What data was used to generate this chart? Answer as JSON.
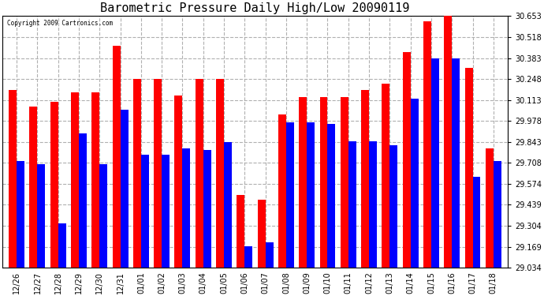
{
  "title": "Barometric Pressure Daily High/Low 20090119",
  "copyright": "Copyright 2009 Cartronics.com",
  "categories": [
    "12/26",
    "12/27",
    "12/28",
    "12/29",
    "12/30",
    "12/31",
    "01/01",
    "01/02",
    "01/03",
    "01/04",
    "01/05",
    "01/06",
    "01/07",
    "01/08",
    "01/09",
    "01/10",
    "01/11",
    "01/12",
    "01/13",
    "01/14",
    "01/15",
    "01/16",
    "01/17",
    "01/18"
  ],
  "highs": [
    30.18,
    30.07,
    30.1,
    30.16,
    30.16,
    30.46,
    30.25,
    30.25,
    30.14,
    30.25,
    30.25,
    29.5,
    29.47,
    30.02,
    30.13,
    30.13,
    30.13,
    30.18,
    30.22,
    30.42,
    30.62,
    30.68,
    30.32,
    29.8
  ],
  "lows": [
    29.72,
    29.7,
    29.32,
    29.9,
    29.7,
    30.05,
    29.76,
    29.76,
    29.8,
    29.79,
    29.84,
    29.17,
    29.2,
    29.97,
    29.97,
    29.96,
    29.85,
    29.85,
    29.82,
    30.12,
    30.38,
    30.38,
    29.62,
    29.72
  ],
  "ymin": 29.034,
  "ymax": 30.653,
  "yticks": [
    29.034,
    29.169,
    29.304,
    29.439,
    29.574,
    29.708,
    29.843,
    29.978,
    30.113,
    30.248,
    30.383,
    30.518,
    30.653
  ],
  "high_color": "#ff0000",
  "low_color": "#0000ff",
  "bg_color": "#ffffff",
  "grid_color": "#b0b0b0",
  "title_fontsize": 11,
  "tick_fontsize": 7,
  "bar_width": 0.38
}
